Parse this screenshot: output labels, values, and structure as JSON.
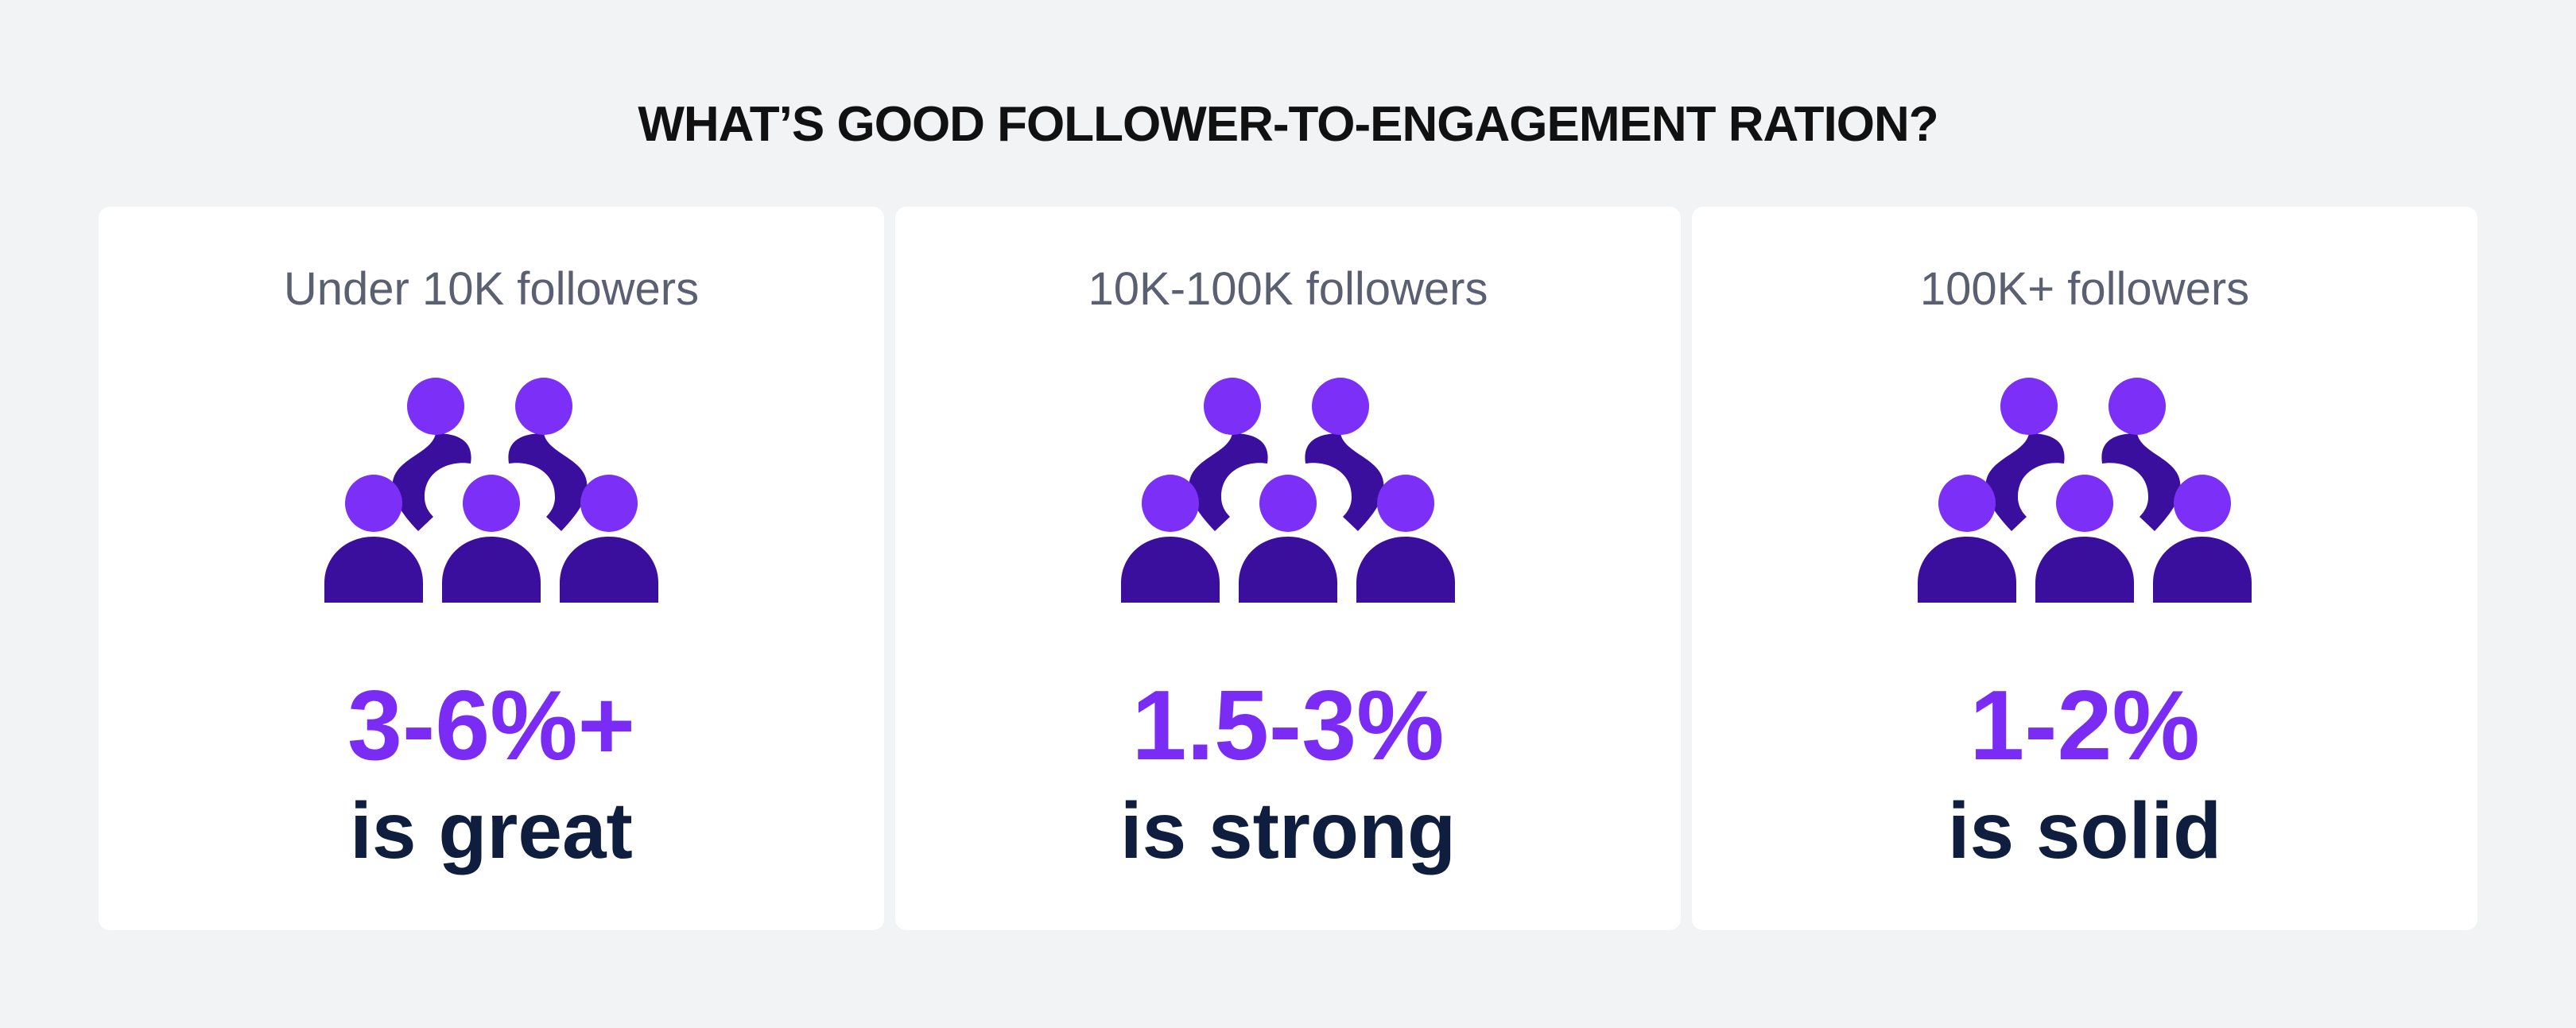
{
  "title": "WHAT’S GOOD FOLLOWER-TO-ENGAGEMENT RATION?",
  "colors": {
    "background": "#f2f3f5",
    "card": "#ffffff",
    "head": "#7b2ff7",
    "body": "#3a0f9e",
    "rate": "#7a2cf5",
    "verdict": "#0f1e3e",
    "label": "#5a5f72"
  },
  "cards": [
    {
      "label": "Under 10K followers",
      "icon": "group-of-people-icon",
      "rate": "3-6%+",
      "verdict": "is great"
    },
    {
      "label": "10K-100K followers",
      "icon": "group-of-people-icon",
      "rate": "1.5-3%",
      "verdict": "is strong"
    },
    {
      "label": "100K+ followers",
      "icon": "group-of-people-icon",
      "rate": "1-2%",
      "verdict": "is solid"
    }
  ]
}
